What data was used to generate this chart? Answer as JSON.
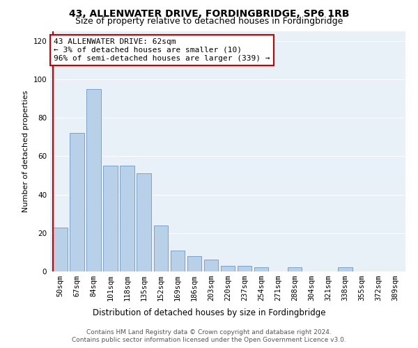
{
  "title": "43, ALLENWATER DRIVE, FORDINGBRIDGE, SP6 1RB",
  "subtitle": "Size of property relative to detached houses in Fordingbridge",
  "xlabel": "Distribution of detached houses by size in Fordingbridge",
  "ylabel": "Number of detached properties",
  "categories": [
    "50sqm",
    "67sqm",
    "84sqm",
    "101sqm",
    "118sqm",
    "135sqm",
    "152sqm",
    "169sqm",
    "186sqm",
    "203sqm",
    "220sqm",
    "237sqm",
    "254sqm",
    "271sqm",
    "288sqm",
    "304sqm",
    "321sqm",
    "338sqm",
    "355sqm",
    "372sqm",
    "389sqm"
  ],
  "bar_heights": [
    23,
    72,
    95,
    55,
    55,
    51,
    24,
    11,
    8,
    6,
    3,
    3,
    2,
    0,
    2,
    0,
    0,
    2,
    0,
    0,
    0
  ],
  "bar_color": "#b8d0e8",
  "bar_edge_color": "#6699cc",
  "marker_line_color": "#cc0000",
  "annotation_line1": "43 ALLENWATER DRIVE: 62sqm",
  "annotation_line2": "← 3% of detached houses are smaller (10)",
  "annotation_line3": "96% of semi-detached houses are larger (339) →",
  "annotation_box_color": "#ffffff",
  "annotation_box_edge": "#cc0000",
  "ylim": [
    0,
    125
  ],
  "yticks": [
    0,
    20,
    40,
    60,
    80,
    100,
    120
  ],
  "background_color": "#ffffff",
  "plot_bg_color": "#e8f0f8",
  "grid_color": "#ffffff",
  "footer_line1": "Contains HM Land Registry data © Crown copyright and database right 2024.",
  "footer_line2": "Contains public sector information licensed under the Open Government Licence v3.0.",
  "title_fontsize": 10,
  "subtitle_fontsize": 9,
  "xlabel_fontsize": 8.5,
  "ylabel_fontsize": 8,
  "tick_fontsize": 7.5,
  "annotation_fontsize": 8,
  "footer_fontsize": 6.5
}
